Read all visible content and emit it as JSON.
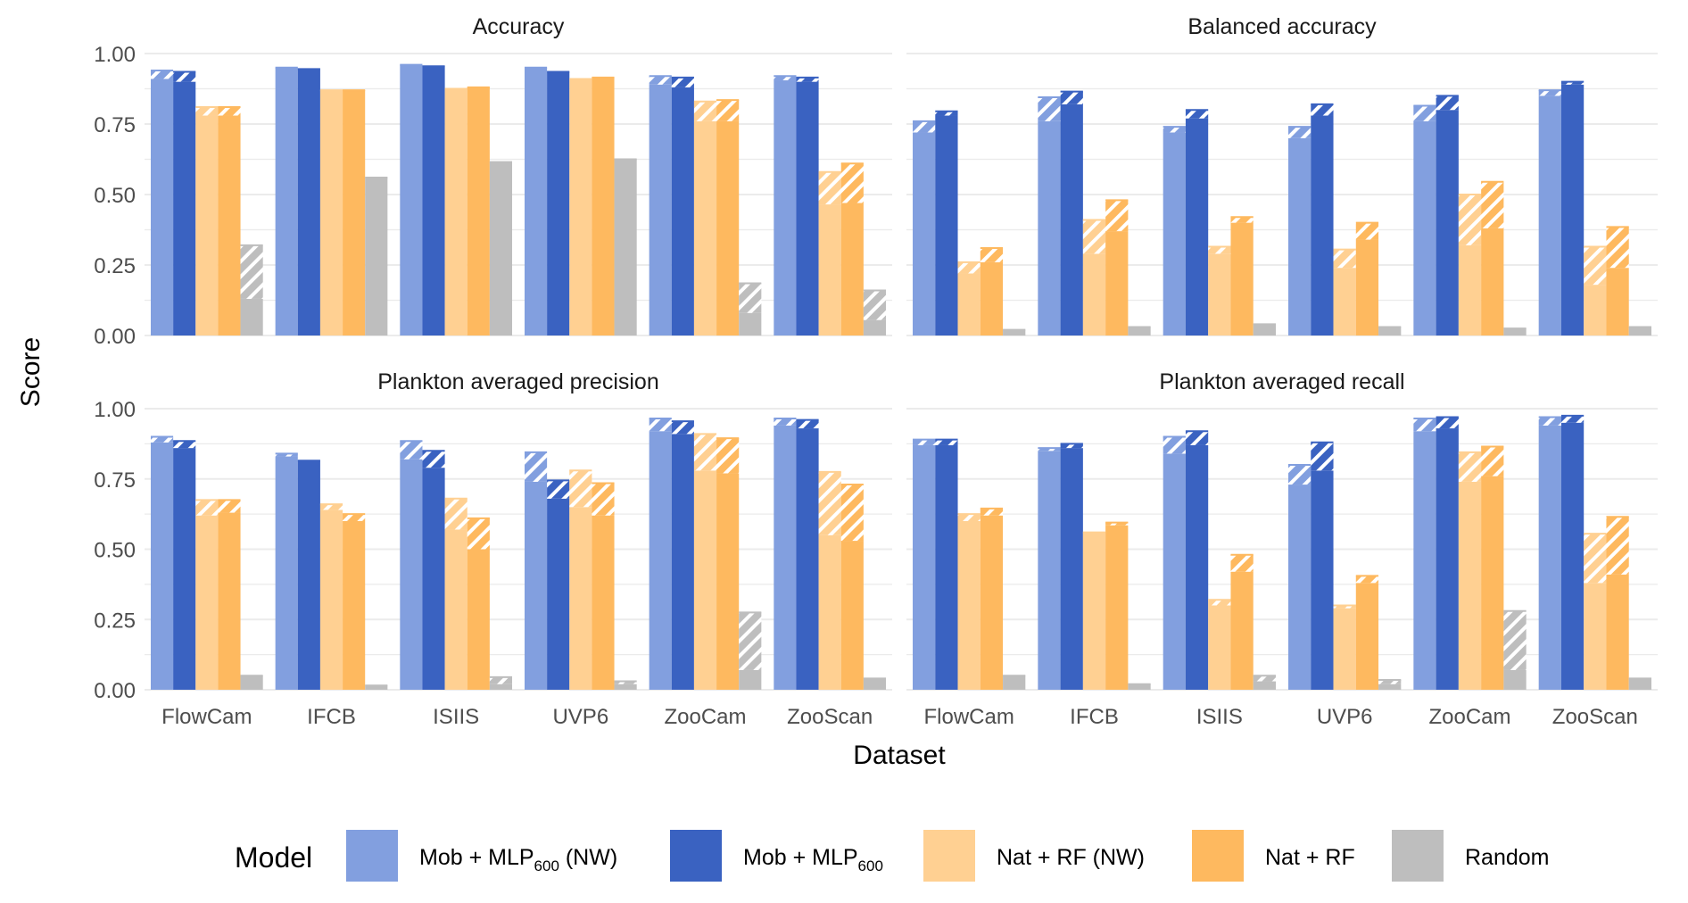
{
  "chart_data": {
    "type": "bar",
    "xlabel": "Dataset",
    "ylabel": "Score",
    "ylim": [
      0,
      1
    ],
    "yticks": [
      "0.00",
      "0.25",
      "0.50",
      "0.75",
      "1.00"
    ],
    "grid": true,
    "legend_placement": "bottom",
    "legend_title": "Model",
    "categories": [
      "FlowCam",
      "IFCB",
      "ISIIS",
      "UVP6",
      "ZooCam",
      "ZooScan"
    ],
    "models": [
      {
        "name": "Mob + MLP",
        "sub": "600",
        "suffix": " (NW)",
        "color": "#829FDF"
      },
      {
        "name": "Mob + MLP",
        "sub": "600",
        "suffix": "",
        "color": "#3A62C1"
      },
      {
        "name": "Nat + RF (NW)",
        "sub": "",
        "suffix": "",
        "color": "#FFD092"
      },
      {
        "name": "Nat + RF",
        "sub": "",
        "suffix": "",
        "color": "#FEB95F"
      },
      {
        "name": "Random",
        "sub": "",
        "suffix": "",
        "color": "#BEBEBE"
      }
    ],
    "note_hatched": "hatched segment spans lower to value",
    "panels": [
      {
        "title": "Accuracy",
        "values": [
          [
            0.94,
            0.935,
            0.81,
            0.81,
            0.32
          ],
          [
            0.95,
            0.945,
            0.87,
            0.87,
            0.56
          ],
          [
            0.96,
            0.955,
            0.875,
            0.88,
            0.615
          ],
          [
            0.95,
            0.935,
            0.91,
            0.915,
            0.625
          ],
          [
            0.92,
            0.915,
            0.83,
            0.835,
            0.185
          ],
          [
            0.92,
            0.915,
            0.58,
            0.61,
            0.16
          ]
        ],
        "lower": [
          [
            0.91,
            0.9,
            0.78,
            0.78,
            0.13
          ],
          [
            0.95,
            0.945,
            0.87,
            0.87,
            0.56
          ],
          [
            0.96,
            0.955,
            0.875,
            0.88,
            0.615
          ],
          [
            0.95,
            0.935,
            0.91,
            0.915,
            0.625
          ],
          [
            0.89,
            0.88,
            0.76,
            0.76,
            0.08
          ],
          [
            0.905,
            0.9,
            0.465,
            0.47,
            0.055
          ]
        ]
      },
      {
        "title": "Balanced accuracy",
        "values": [
          [
            0.76,
            0.795,
            0.26,
            0.31,
            0.02
          ],
          [
            0.845,
            0.865,
            0.41,
            0.48,
            0.03
          ],
          [
            0.74,
            0.8,
            0.315,
            0.42,
            0.04
          ],
          [
            0.74,
            0.82,
            0.305,
            0.4,
            0.03
          ],
          [
            0.815,
            0.85,
            0.5,
            0.545,
            0.025
          ],
          [
            0.87,
            0.9,
            0.315,
            0.385,
            0.03
          ]
        ],
        "lower": [
          [
            0.72,
            0.78,
            0.22,
            0.26,
            0.02
          ],
          [
            0.76,
            0.82,
            0.29,
            0.37,
            0.03
          ],
          [
            0.72,
            0.77,
            0.29,
            0.4,
            0.04
          ],
          [
            0.7,
            0.78,
            0.24,
            0.34,
            0.03
          ],
          [
            0.76,
            0.8,
            0.32,
            0.38,
            0.025
          ],
          [
            0.85,
            0.89,
            0.18,
            0.24,
            0.03
          ]
        ]
      },
      {
        "title": "Plankton averaged precision",
        "values": [
          [
            0.9,
            0.885,
            0.675,
            0.675,
            0.05
          ],
          [
            0.84,
            0.815,
            0.66,
            0.625,
            0.015
          ],
          [
            0.885,
            0.85,
            0.68,
            0.61,
            0.045
          ],
          [
            0.845,
            0.745,
            0.78,
            0.735,
            0.03
          ],
          [
            0.965,
            0.955,
            0.91,
            0.895,
            0.275
          ],
          [
            0.965,
            0.96,
            0.775,
            0.73,
            0.04
          ]
        ],
        "lower": [
          [
            0.88,
            0.86,
            0.62,
            0.63,
            0.05
          ],
          [
            0.83,
            0.815,
            0.64,
            0.6,
            0.015
          ],
          [
            0.82,
            0.79,
            0.57,
            0.5,
            0.02
          ],
          [
            0.74,
            0.68,
            0.65,
            0.62,
            0.02
          ],
          [
            0.92,
            0.91,
            0.78,
            0.77,
            0.07
          ],
          [
            0.94,
            0.93,
            0.55,
            0.53,
            0.04
          ]
        ]
      },
      {
        "title": "Plankton averaged recall",
        "values": [
          [
            0.89,
            0.89,
            0.625,
            0.645,
            0.05
          ],
          [
            0.86,
            0.875,
            0.56,
            0.595,
            0.02
          ],
          [
            0.9,
            0.92,
            0.32,
            0.48,
            0.05
          ],
          [
            0.8,
            0.88,
            0.3,
            0.405,
            0.035
          ],
          [
            0.965,
            0.97,
            0.845,
            0.865,
            0.28
          ],
          [
            0.97,
            0.975,
            0.555,
            0.615,
            0.04
          ]
        ],
        "lower": [
          [
            0.87,
            0.87,
            0.6,
            0.62,
            0.05
          ],
          [
            0.85,
            0.86,
            0.56,
            0.585,
            0.02
          ],
          [
            0.84,
            0.87,
            0.3,
            0.42,
            0.03
          ],
          [
            0.73,
            0.78,
            0.29,
            0.38,
            0.02
          ],
          [
            0.92,
            0.93,
            0.74,
            0.76,
            0.07
          ],
          [
            0.94,
            0.95,
            0.38,
            0.41,
            0.04
          ]
        ]
      }
    ]
  }
}
